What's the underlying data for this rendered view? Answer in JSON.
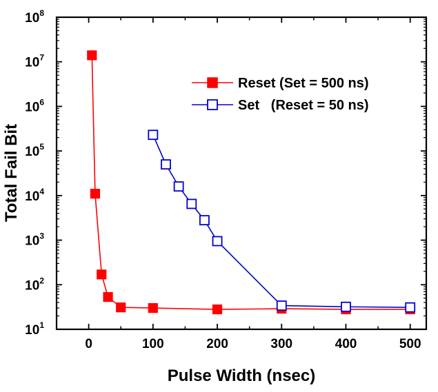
{
  "chart_data": {
    "type": "line",
    "title": "",
    "xlabel": "Pulse Width (nsec)",
    "ylabel": "Total Fail Bit",
    "xlim": [
      -50,
      525
    ],
    "ylim": [
      10,
      100000000
    ],
    "yscale": "log",
    "grid": false,
    "legend_position": "top-right",
    "x_ticks": [
      "0",
      "100",
      "200",
      "300",
      "400",
      "500"
    ],
    "y_ticks": [
      {
        "base": "10",
        "exp": "1"
      },
      {
        "base": "10",
        "exp": "2"
      },
      {
        "base": "10",
        "exp": "3"
      },
      {
        "base": "10",
        "exp": "4"
      },
      {
        "base": "10",
        "exp": "5"
      },
      {
        "base": "10",
        "exp": "6"
      },
      {
        "base": "10",
        "exp": "7"
      },
      {
        "base": "10",
        "exp": "8"
      }
    ],
    "series": [
      {
        "name": "Reset (Set = 500 ns)",
        "color": "#ff0000",
        "marker": "filled-square",
        "x": [
          5,
          10,
          20,
          30,
          50,
          100,
          200,
          300,
          400,
          500
        ],
        "y": [
          14000000,
          11000,
          170,
          53,
          31,
          30,
          28,
          29,
          28,
          28
        ]
      },
      {
        "name": "Set   (Reset = 50 ns)",
        "color": "#0000cc",
        "marker": "open-square",
        "x": [
          100,
          120,
          140,
          160,
          180,
          200,
          300,
          400,
          500
        ],
        "y": [
          230000,
          50000,
          16000,
          6500,
          2800,
          950,
          34,
          32,
          31
        ]
      }
    ]
  }
}
